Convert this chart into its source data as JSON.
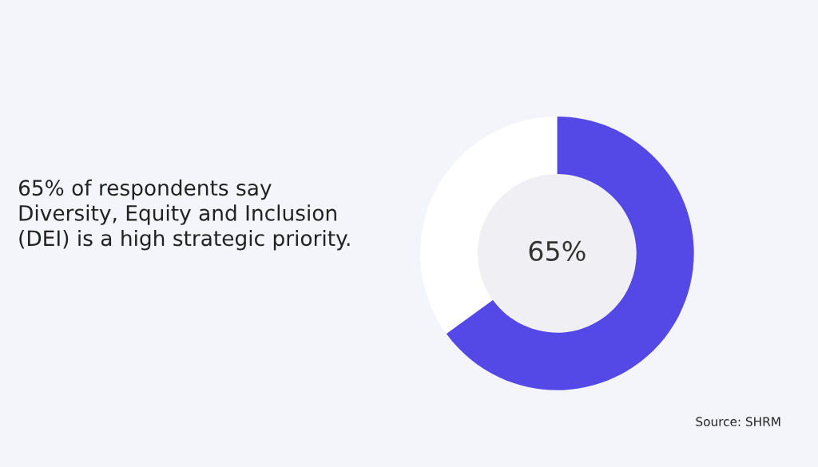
{
  "chart_data": {
    "type": "donut",
    "title": "65% of respondents say Diversity, Equity and Inclusion (DEI) is a high strategic priority.",
    "categories": [
      null,
      null
    ],
    "values": [
      65,
      35
    ],
    "colors": [
      "#5448e6",
      "#ffffff"
    ],
    "value_labels": [
      "65%",
      null
    ],
    "annotations": [
      "Source: SHRM"
    ]
  }
}
